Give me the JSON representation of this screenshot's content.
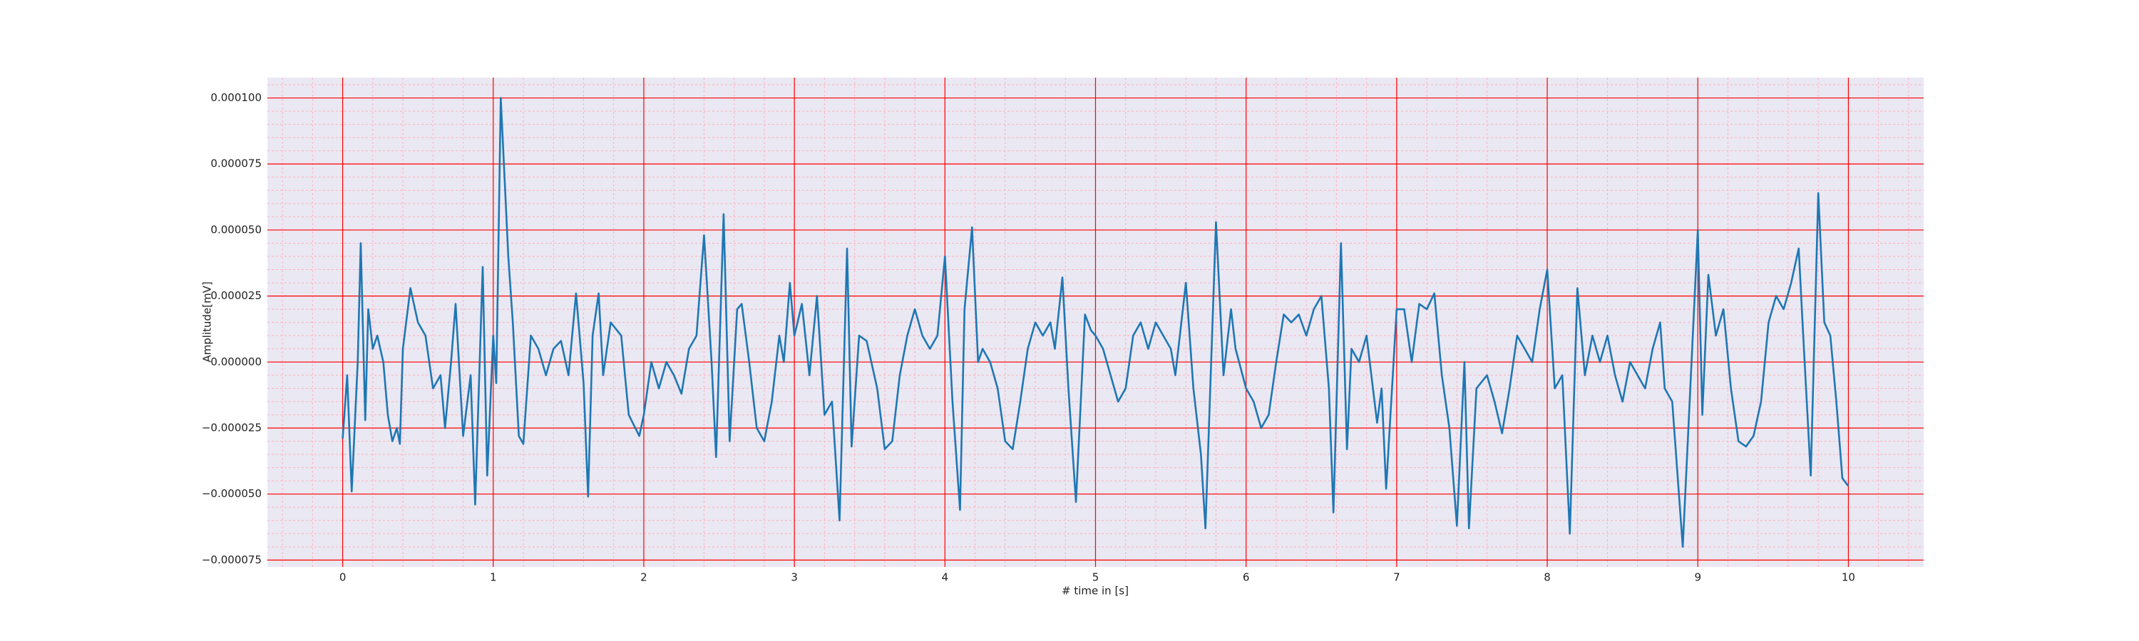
{
  "chart_data": {
    "type": "line",
    "xlabel": "# time in [s]",
    "ylabel": "Amplitude[mV]",
    "x": [
      0,
      0.03,
      0.06,
      0.1,
      0.12,
      0.15,
      0.17,
      0.2,
      0.23,
      0.27,
      0.3,
      0.33,
      0.36,
      0.38,
      0.4,
      0.45,
      0.5,
      0.55,
      0.6,
      0.65,
      0.68,
      0.72,
      0.75,
      0.8,
      0.85,
      0.88,
      0.93,
      0.96,
      1.0,
      1.02,
      1.05,
      1.1,
      1.13,
      1.17,
      1.2,
      1.25,
      1.3,
      1.35,
      1.4,
      1.45,
      1.5,
      1.55,
      1.6,
      1.63,
      1.66,
      1.7,
      1.73,
      1.78,
      1.85,
      1.9,
      1.97,
      2.0,
      2.05,
      2.1,
      2.15,
      2.2,
      2.25,
      2.3,
      2.35,
      2.4,
      2.45,
      2.48,
      2.53,
      2.57,
      2.62,
      2.65,
      2.7,
      2.75,
      2.8,
      2.85,
      2.9,
      2.93,
      2.97,
      3.0,
      3.05,
      3.1,
      3.15,
      3.2,
      3.25,
      3.3,
      3.35,
      3.38,
      3.43,
      3.48,
      3.55,
      3.6,
      3.65,
      3.7,
      3.75,
      3.8,
      3.85,
      3.9,
      3.95,
      4.0,
      4.05,
      4.1,
      4.13,
      4.18,
      4.22,
      4.25,
      4.3,
      4.35,
      4.4,
      4.45,
      4.5,
      4.55,
      4.6,
      4.65,
      4.7,
      4.73,
      4.78,
      4.82,
      4.87,
      4.93,
      4.97,
      5.0,
      5.05,
      5.1,
      5.15,
      5.2,
      5.25,
      5.3,
      5.35,
      5.4,
      5.45,
      5.5,
      5.53,
      5.6,
      5.65,
      5.7,
      5.73,
      5.8,
      5.85,
      5.9,
      5.93,
      6.0,
      6.05,
      6.1,
      6.15,
      6.2,
      6.25,
      6.3,
      6.35,
      6.4,
      6.45,
      6.5,
      6.55,
      6.58,
      6.63,
      6.67,
      6.7,
      6.75,
      6.8,
      6.87,
      6.9,
      6.93,
      7.0,
      7.05,
      7.1,
      7.15,
      7.2,
      7.25,
      7.3,
      7.35,
      7.4,
      7.45,
      7.48,
      7.53,
      7.6,
      7.65,
      7.7,
      7.75,
      7.8,
      7.85,
      7.9,
      7.95,
      8.0,
      8.05,
      8.1,
      8.15,
      8.2,
      8.25,
      8.3,
      8.35,
      8.4,
      8.45,
      8.5,
      8.55,
      8.6,
      8.65,
      8.7,
      8.75,
      8.78,
      8.83,
      8.9,
      9.0,
      9.03,
      9.07,
      9.12,
      9.17,
      9.22,
      9.27,
      9.32,
      9.37,
      9.42,
      9.47,
      9.52,
      9.57,
      9.62,
      9.67,
      9.7,
      9.75,
      9.8,
      9.84,
      9.88,
      9.92,
      9.96,
      10.0
    ],
    "series": [
      {
        "color": "#1f77b4",
        "values": [
          -2.9e-05,
          -5e-06,
          -4.9e-05,
          0,
          4.5e-05,
          -2.2e-05,
          2e-05,
          5e-06,
          1e-05,
          0,
          -2e-05,
          -3e-05,
          -2.5e-05,
          -3.1e-05,
          5e-06,
          2.8e-05,
          1.5e-05,
          1e-05,
          -1e-05,
          -5e-06,
          -2.5e-05,
          0,
          2.2e-05,
          -2.8e-05,
          -5e-06,
          -5.4e-05,
          3.6e-05,
          -4.3e-05,
          1e-05,
          -8e-06,
          0.0001,
          4e-05,
          1.5e-05,
          -2.8e-05,
          -3.1e-05,
          1e-05,
          5e-06,
          -5e-06,
          5e-06,
          8e-06,
          -5e-06,
          2.6e-05,
          -8e-06,
          -5.1e-05,
          1e-05,
          2.6e-05,
          -5e-06,
          1.5e-05,
          1e-05,
          -2e-05,
          -2.8e-05,
          -2e-05,
          0,
          -1e-05,
          0,
          -5e-06,
          -1.2e-05,
          5e-06,
          1e-05,
          4.8e-05,
          0,
          -3.6e-05,
          5.6e-05,
          -3e-05,
          2e-05,
          2.2e-05,
          0,
          -2.5e-05,
          -3e-05,
          -1.5e-05,
          1e-05,
          0,
          3e-05,
          1e-05,
          2.2e-05,
          -5e-06,
          2.5e-05,
          -2e-05,
          -1.5e-05,
          -6e-05,
          4.3e-05,
          -3.2e-05,
          1e-05,
          8e-06,
          -1e-05,
          -3.3e-05,
          -3e-05,
          -5e-06,
          1e-05,
          2e-05,
          1e-05,
          5e-06,
          1e-05,
          4e-05,
          -1.5e-05,
          -5.6e-05,
          2e-05,
          5.1e-05,
          0,
          5e-06,
          0,
          -1e-05,
          -3e-05,
          -3.3e-05,
          -1.5e-05,
          5e-06,
          1.5e-05,
          1e-05,
          1.5e-05,
          5e-06,
          3.2e-05,
          -1e-05,
          -5.3e-05,
          1.8e-05,
          1.2e-05,
          1e-05,
          5e-06,
          -5e-06,
          -1.5e-05,
          -1e-05,
          1e-05,
          1.5e-05,
          5e-06,
          1.5e-05,
          1e-05,
          5e-06,
          -5e-06,
          3e-05,
          -1e-05,
          -3.5e-05,
          -6.3e-05,
          5.3e-05,
          -5e-06,
          2e-05,
          5e-06,
          -1e-05,
          -1.5e-05,
          -2.5e-05,
          -2e-05,
          0,
          1.8e-05,
          1.5e-05,
          1.8e-05,
          1e-05,
          2e-05,
          2.5e-05,
          -1e-05,
          -5.7e-05,
          4.5e-05,
          -3.3e-05,
          5e-06,
          0,
          1e-05,
          -2.3e-05,
          -1e-05,
          -4.8e-05,
          2e-05,
          2e-05,
          0,
          2.2e-05,
          2e-05,
          2.6e-05,
          -5e-06,
          -2.5e-05,
          -6.2e-05,
          0,
          -6.3e-05,
          -1e-05,
          -5e-06,
          -1.5e-05,
          -2.7e-05,
          -1e-05,
          1e-05,
          5e-06,
          0,
          2e-05,
          3.5e-05,
          -1e-05,
          -5e-06,
          -6.5e-05,
          2.8e-05,
          -5e-06,
          1e-05,
          0,
          1e-05,
          -5e-06,
          -1.5e-05,
          0,
          -5e-06,
          -1e-05,
          5e-06,
          1.5e-05,
          -1e-05,
          -1.5e-05,
          -7e-05,
          5e-05,
          -2e-05,
          3.3e-05,
          1e-05,
          2e-05,
          -1e-05,
          -3e-05,
          -3.2e-05,
          -2.8e-05,
          -1.5e-05,
          1.5e-05,
          2.5e-05,
          2e-05,
          3e-05,
          4.3e-05,
          1e-05,
          -4.3e-05,
          6.4e-05,
          1.5e-05,
          1e-05,
          -1.5e-05,
          -4.4e-05,
          -4.7e-05
        ]
      }
    ],
    "xlim": [
      -0.5,
      10.5
    ],
    "ylim": [
      -7.76e-05,
      0.0001077
    ],
    "xticks": [
      0,
      1,
      2,
      3,
      4,
      5,
      6,
      7,
      8,
      9,
      10
    ],
    "yticks": [
      {
        "value": -7.5e-05,
        "label": "−0.000075"
      },
      {
        "value": -5e-05,
        "label": "−0.000050"
      },
      {
        "value": -2.5e-05,
        "label": "−0.000025"
      },
      {
        "value": 0,
        "label": "0.000000"
      },
      {
        "value": 2.5e-05,
        "label": "0.000025"
      },
      {
        "value": 5e-05,
        "label": "0.000050"
      },
      {
        "value": 7.5e-05,
        "label": "0.000075"
      },
      {
        "value": 0.0001,
        "label": "0.000100"
      }
    ],
    "grid": true,
    "grid_color": "#ff0000",
    "minor_grid": {
      "x_step": 0.2,
      "y_step": 5e-06,
      "color": "#ffb0c0"
    },
    "background": "#eae8f2"
  }
}
